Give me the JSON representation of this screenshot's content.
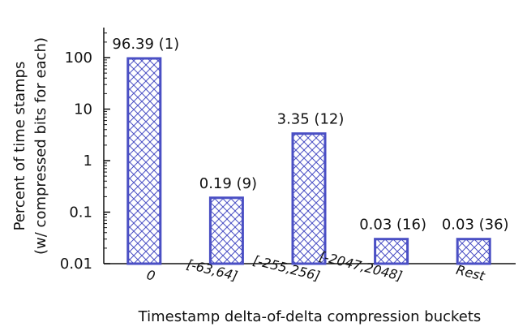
{
  "chart_data": {
    "type": "bar",
    "yscale": "log",
    "ylim": [
      0.01,
      300
    ],
    "ylabel": [
      "Percent of time stamps",
      "(w/ compressed bits for each)"
    ],
    "xlabel": "Timestamp delta-of-delta compression buckets",
    "yticks": [
      {
        "value": 100,
        "label": "100"
      },
      {
        "value": 10,
        "label": "10"
      },
      {
        "value": 1,
        "label": "1"
      },
      {
        "value": 0.1,
        "label": "0.1"
      },
      {
        "value": 0.01,
        "label": "0.01"
      }
    ],
    "categories": [
      "0",
      "[-63,64]",
      "[-255,256]",
      "[-2047,2048]",
      "Rest"
    ],
    "values": [
      96.39,
      0.19,
      3.35,
      0.03,
      0.03
    ],
    "data_labels": [
      "96.39 (1)",
      "0.19 (9)",
      "3.35 (12)",
      "0.03 (16)",
      "0.03 (36)"
    ],
    "grid": false,
    "bar_color": "#4a4fc4",
    "bar_pattern": "crosshatch"
  }
}
